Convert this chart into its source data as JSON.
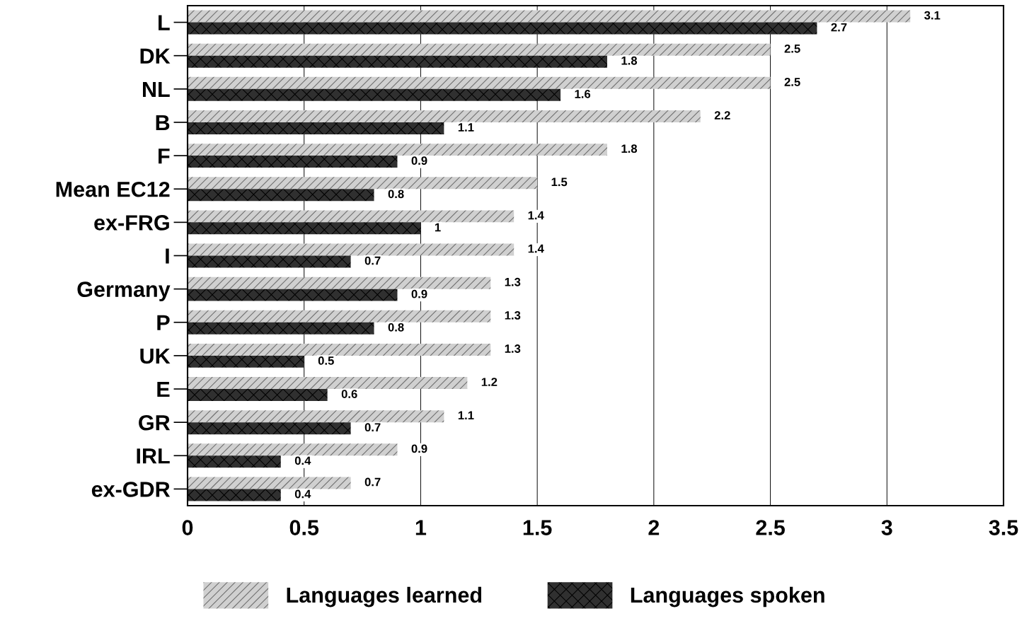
{
  "chart_data": {
    "type": "bar",
    "orientation": "horizontal",
    "categories": [
      "L",
      "DK",
      "NL",
      "B",
      "F",
      "Mean EC12",
      "ex-FRG",
      "I",
      "Germany",
      "P",
      "UK",
      "E",
      "GR",
      "IRL",
      "ex-GDR"
    ],
    "series": [
      {
        "name": "Languages learned",
        "color": "#d0d0d0",
        "values": [
          3.1,
          2.5,
          2.5,
          2.2,
          1.8,
          1.5,
          1.4,
          1.4,
          1.3,
          1.3,
          1.3,
          1.2,
          1.1,
          0.9,
          0.7
        ]
      },
      {
        "name": "Languages spoken",
        "color": "#303030",
        "values": [
          2.7,
          1.8,
          1.6,
          1.1,
          0.9,
          0.8,
          1,
          0.7,
          0.9,
          0.8,
          0.5,
          0.6,
          0.7,
          0.4,
          0.4
        ]
      }
    ],
    "xlim": [
      0,
      3.5
    ],
    "xticks": [
      0,
      0.5,
      1,
      1.5,
      2,
      2.5,
      3,
      3.5
    ],
    "data_labels": true,
    "grid": "x",
    "legend": "bottom"
  }
}
